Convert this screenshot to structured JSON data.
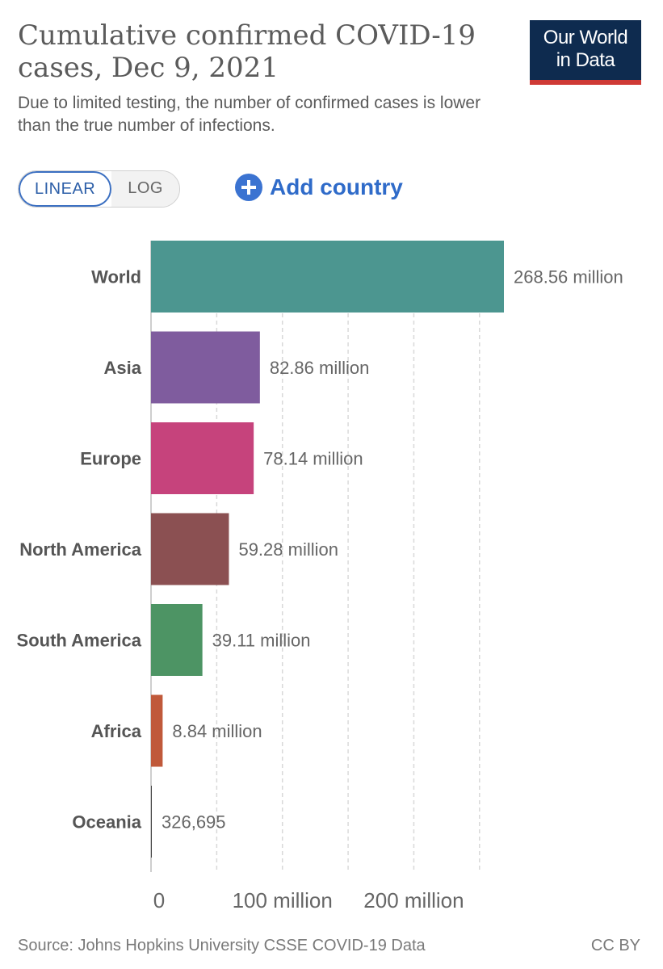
{
  "header": {
    "title": "Cumulative confirmed COVID-19 cases, Dec 9, 2021",
    "subtitle": "Due to limited testing, the number of confirmed cases is lower than the true number of infections.",
    "logo_line1": "Our World",
    "logo_line2": "in Data",
    "logo_color": "#0e2b4f",
    "logo_accent": "#cf3a35"
  },
  "controls": {
    "linear_label": "LINEAR",
    "log_label": "LOG",
    "selected_scale": "LINEAR",
    "add_country_label": "Add country"
  },
  "chart_data": {
    "type": "bar",
    "orientation": "horizontal",
    "categories": [
      "World",
      "Asia",
      "Europe",
      "North America",
      "South America",
      "Africa",
      "Oceania"
    ],
    "values": [
      268560000,
      82860000,
      78140000,
      59280000,
      39110000,
      8840000,
      326695
    ],
    "value_labels": [
      "268.56 million",
      "82.86 million",
      "78.14 million",
      "59.28 million",
      "39.11 million",
      "8.84 million",
      "326,695"
    ],
    "colors": [
      "#4c9690",
      "#7f5c9e",
      "#c6437c",
      "#8b5052",
      "#4d9464",
      "#c0593a",
      "#444444"
    ],
    "xlim": [
      0,
      268560000
    ],
    "x_ticks": [
      0,
      50000000,
      100000000,
      150000000,
      200000000,
      250000000
    ],
    "x_tick_labels": [
      "0",
      "",
      "100 million",
      "",
      "200 million",
      ""
    ],
    "grid": true,
    "scale": "linear"
  },
  "footer": {
    "source": "Source: Johns Hopkins University CSSE COVID-19 Data",
    "license": "CC BY"
  }
}
